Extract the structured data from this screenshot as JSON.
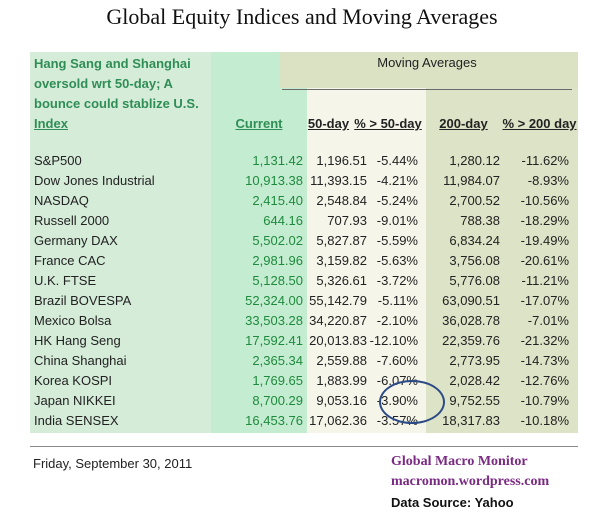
{
  "title": "Global Equity Indices and Moving Averages",
  "note_lines": [
    "Hang Sang and Shanghai",
    "oversold wrt 50-day; A",
    "bounce could stablize U.S."
  ],
  "moving_averages_label": "Moving Averages",
  "headers": {
    "index": "Index",
    "current": "Current",
    "ma50": "50-day",
    "pct50": "% > 50-day",
    "ma200": "200-day",
    "pct200": "% > 200 day"
  },
  "rows": [
    {
      "name": "S&P500",
      "current": "1,131.42",
      "ma50": "1,196.51",
      "pct50": "-5.44%",
      "ma200": "1,280.12",
      "pct200": "-11.62%"
    },
    {
      "name": "Dow Jones Industrial",
      "current": "10,913.38",
      "ma50": "11,393.15",
      "pct50": "-4.21%",
      "ma200": "11,984.07",
      "pct200": "-8.93%"
    },
    {
      "name": "NASDAQ",
      "current": "2,415.40",
      "ma50": "2,548.84",
      "pct50": "-5.24%",
      "ma200": "2,700.52",
      "pct200": "-10.56%"
    },
    {
      "name": "Russell 2000",
      "current": "644.16",
      "ma50": "707.93",
      "pct50": "-9.01%",
      "ma200": "788.38",
      "pct200": "-18.29%"
    },
    {
      "name": "Germany DAX",
      "current": "5,502.02",
      "ma50": "5,827.87",
      "pct50": "-5.59%",
      "ma200": "6,834.24",
      "pct200": "-19.49%"
    },
    {
      "name": "France CAC",
      "current": "2,981.96",
      "ma50": "3,159.82",
      "pct50": "-5.63%",
      "ma200": "3,756.08",
      "pct200": "-20.61%"
    },
    {
      "name": "U.K. FTSE",
      "current": "5,128.50",
      "ma50": "5,326.61",
      "pct50": "-3.72%",
      "ma200": "5,776.08",
      "pct200": "-11.21%"
    },
    {
      "name": "Brazil BOVESPA",
      "current": "52,324.00",
      "ma50": "55,142.79",
      "pct50": "-5.11%",
      "ma200": "63,090.51",
      "pct200": "-17.07%"
    },
    {
      "name": "Mexico Bolsa",
      "current": "33,503.28",
      "ma50": "34,220.87",
      "pct50": "-2.10%",
      "ma200": "36,028.78",
      "pct200": "-7.01%"
    },
    {
      "name": "HK  Hang Seng",
      "current": "17,592.41",
      "ma50": "20,013.83",
      "pct50": "-12.10%",
      "ma200": "22,359.76",
      "pct200": "-21.32%"
    },
    {
      "name": "China Shanghai",
      "current": "2,365.34",
      "ma50": "2,559.88",
      "pct50": "-7.60%",
      "ma200": "2,773.95",
      "pct200": "-14.73%"
    },
    {
      "name": "Korea KOSPI",
      "current": "1,769.65",
      "ma50": "1,883.99",
      "pct50": "-6.07%",
      "ma200": "2,028.42",
      "pct200": "-12.76%"
    },
    {
      "name": "Japan NIKKEI",
      "current": "8,700.29",
      "ma50": "9,053.16",
      "pct50": "-3.90%",
      "ma200": "9,752.55",
      "pct200": "-10.79%"
    },
    {
      "name": "India SENSEX",
      "current": "16,453.76",
      "ma50": "17,062.36",
      "pct50": "-3.57%",
      "ma200": "18,317.83",
      "pct200": "-10.18%"
    }
  ],
  "footer": {
    "date": "Friday, September 30, 2011",
    "brand": "Global Macro Monitor",
    "url": "macromon.wordpress.com",
    "source": "Data Source: Yahoo"
  },
  "colors": {
    "note_text": "#2f8e56",
    "current_values": "#1f8a3e",
    "highlight_oval": "#2b4a86",
    "brand_text": "#7a2a82"
  }
}
